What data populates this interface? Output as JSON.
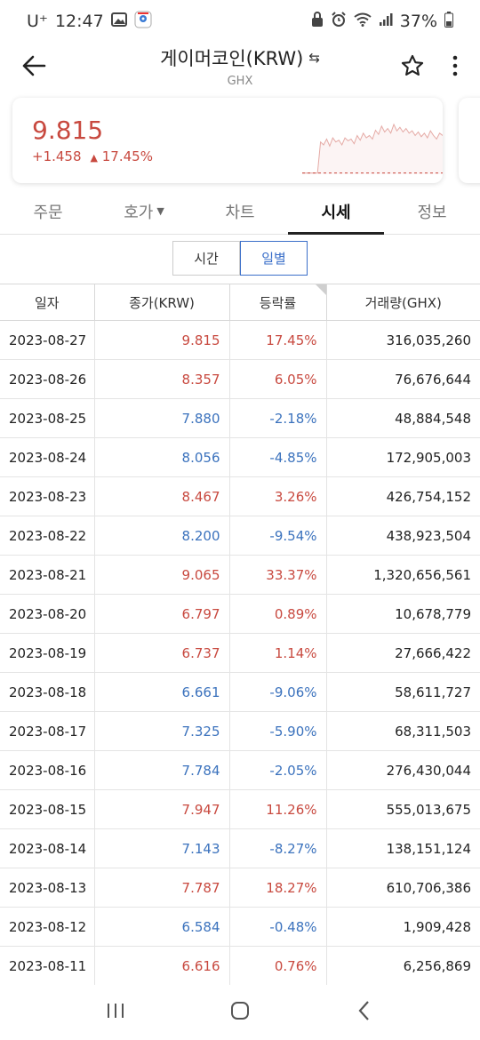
{
  "status_bar": {
    "carrier": "U⁺",
    "time": "12:47",
    "battery": "37%"
  },
  "header": {
    "title": "게이머코인(KRW)",
    "subtitle": "GHX",
    "swap_icon": "swap-arrows-icon",
    "back_icon": "arrow-left-icon",
    "star_icon": "star-outline-icon",
    "more_icon": "kebab-menu-icon"
  },
  "price_card": {
    "price": "9.815",
    "change": "+1.458",
    "change_rate": "17.45%",
    "direction_symbol": "▲",
    "color": "#c8493f",
    "sparkline": [
      0.02,
      0.02,
      0.02,
      0.02,
      0.02,
      0.02,
      0.55,
      0.5,
      0.6,
      0.48,
      0.62,
      0.55,
      0.58,
      0.5,
      0.62,
      0.57,
      0.6,
      0.52,
      0.66,
      0.58,
      0.7,
      0.62,
      0.66,
      0.6,
      0.75,
      0.68,
      0.82,
      0.72,
      0.78,
      0.7,
      0.85,
      0.74,
      0.8,
      0.72,
      0.78,
      0.7,
      0.74,
      0.66,
      0.72,
      0.64,
      0.7,
      0.62,
      0.74,
      0.66,
      0.6,
      0.7,
      0.66
    ]
  },
  "tabs": [
    {
      "label": "주문",
      "active": false
    },
    {
      "label": "호가",
      "active": false,
      "has_dropdown": true
    },
    {
      "label": "차트",
      "active": false
    },
    {
      "label": "시세",
      "active": true
    },
    {
      "label": "정보",
      "active": false
    }
  ],
  "period_toggle": [
    {
      "label": "시간",
      "active": false
    },
    {
      "label": "일별",
      "active": true
    }
  ],
  "table": {
    "headers": [
      "일자",
      "종가(KRW)",
      "등락률",
      "거래량(GHX)"
    ],
    "rows": [
      {
        "date": "2023-08-27",
        "close": "9.815",
        "rate": "17.45%",
        "volume": "316,035,260",
        "dir": "up"
      },
      {
        "date": "2023-08-26",
        "close": "8.357",
        "rate": "6.05%",
        "volume": "76,676,644",
        "dir": "up"
      },
      {
        "date": "2023-08-25",
        "close": "7.880",
        "rate": "-2.18%",
        "volume": "48,884,548",
        "dir": "down"
      },
      {
        "date": "2023-08-24",
        "close": "8.056",
        "rate": "-4.85%",
        "volume": "172,905,003",
        "dir": "down"
      },
      {
        "date": "2023-08-23",
        "close": "8.467",
        "rate": "3.26%",
        "volume": "426,754,152",
        "dir": "up"
      },
      {
        "date": "2023-08-22",
        "close": "8.200",
        "rate": "-9.54%",
        "volume": "438,923,504",
        "dir": "down"
      },
      {
        "date": "2023-08-21",
        "close": "9.065",
        "rate": "33.37%",
        "volume": "1,320,656,561",
        "dir": "up"
      },
      {
        "date": "2023-08-20",
        "close": "6.797",
        "rate": "0.89%",
        "volume": "10,678,779",
        "dir": "up"
      },
      {
        "date": "2023-08-19",
        "close": "6.737",
        "rate": "1.14%",
        "volume": "27,666,422",
        "dir": "up"
      },
      {
        "date": "2023-08-18",
        "close": "6.661",
        "rate": "-9.06%",
        "volume": "58,611,727",
        "dir": "down"
      },
      {
        "date": "2023-08-17",
        "close": "7.325",
        "rate": "-5.90%",
        "volume": "68,311,503",
        "dir": "down"
      },
      {
        "date": "2023-08-16",
        "close": "7.784",
        "rate": "-2.05%",
        "volume": "276,430,044",
        "dir": "down"
      },
      {
        "date": "2023-08-15",
        "close": "7.947",
        "rate": "11.26%",
        "volume": "555,013,675",
        "dir": "up"
      },
      {
        "date": "2023-08-14",
        "close": "7.143",
        "rate": "-8.27%",
        "volume": "138,151,124",
        "dir": "down"
      },
      {
        "date": "2023-08-13",
        "close": "7.787",
        "rate": "18.27%",
        "volume": "610,706,386",
        "dir": "up"
      },
      {
        "date": "2023-08-12",
        "close": "6.584",
        "rate": "-0.48%",
        "volume": "1,909,428",
        "dir": "down"
      },
      {
        "date": "2023-08-11",
        "close": "6.616",
        "rate": "0.76%",
        "volume": "6,256,869",
        "dir": "up"
      }
    ]
  },
  "colors": {
    "up": "#c8493f",
    "down": "#3b72bd",
    "accent": "#3b6fc9"
  },
  "nav_bar": {
    "recents_icon": "recents-icon",
    "home_icon": "home-icon",
    "back_icon": "back-chevron-icon"
  }
}
